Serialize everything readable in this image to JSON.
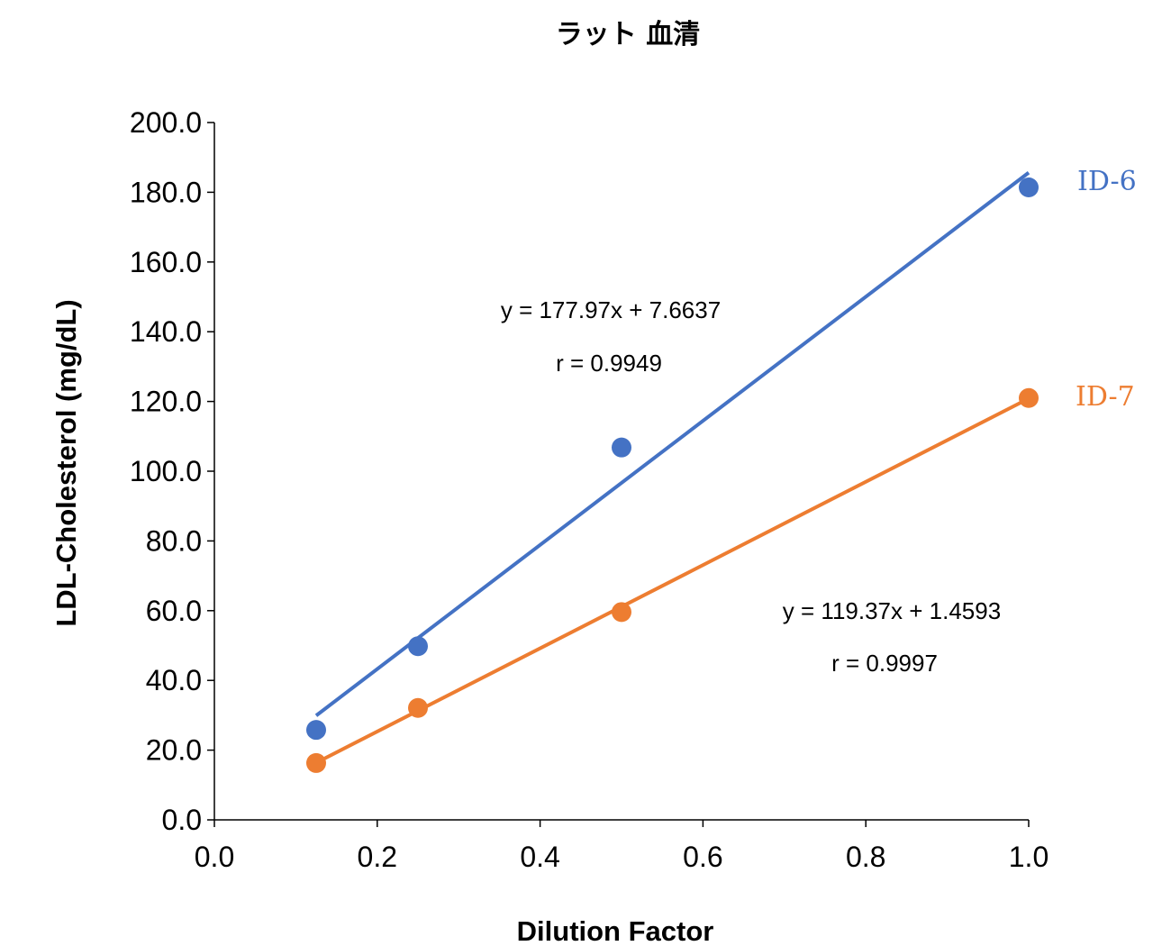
{
  "chart_data": {
    "type": "scatter",
    "title": "ラット 血清",
    "xlabel": "Dilution Factor",
    "ylabel": "LDL-Cholesterol (mg/dL)",
    "xlim": [
      0,
      1.0
    ],
    "ylim": [
      0,
      200
    ],
    "xticks": [
      0.0,
      0.2,
      0.4,
      0.6,
      0.8,
      1.0
    ],
    "xtick_labels": [
      "0.0",
      "0.2",
      "0.4",
      "0.6",
      "0.8",
      "1.0"
    ],
    "yticks": [
      0,
      20,
      40,
      60,
      80,
      100,
      120,
      140,
      160,
      180,
      200
    ],
    "ytick_labels": [
      "0.0",
      "20.0",
      "40.0",
      "60.0",
      "80.0",
      "100.0",
      "120.0",
      "140.0",
      "160.0",
      "180.0",
      "200.0"
    ],
    "grid": false,
    "series": [
      {
        "name": "ID-6",
        "color": "#4472C4",
        "x": [
          0.125,
          0.25,
          0.5,
          1.0
        ],
        "y": [
          25.8,
          49.8,
          106.8,
          181.4
        ],
        "trendline": {
          "slope": 177.97,
          "intercept": 7.6637,
          "x_range": [
            0.125,
            1.0
          ]
        },
        "equation": "y = 177.97x + 7.6637",
        "r_text": "r = 0.9949"
      },
      {
        "name": "ID-7",
        "color": "#ED7D31",
        "x": [
          0.125,
          0.25,
          0.5,
          1.0
        ],
        "y": [
          16.3,
          32.1,
          59.6,
          121.0
        ],
        "trendline": {
          "slope": 119.37,
          "intercept": 1.4593,
          "x_range": [
            0.125,
            1.0
          ]
        },
        "equation": "y = 119.37x + 1.4593",
        "r_text": "r = 0.9997"
      }
    ]
  }
}
